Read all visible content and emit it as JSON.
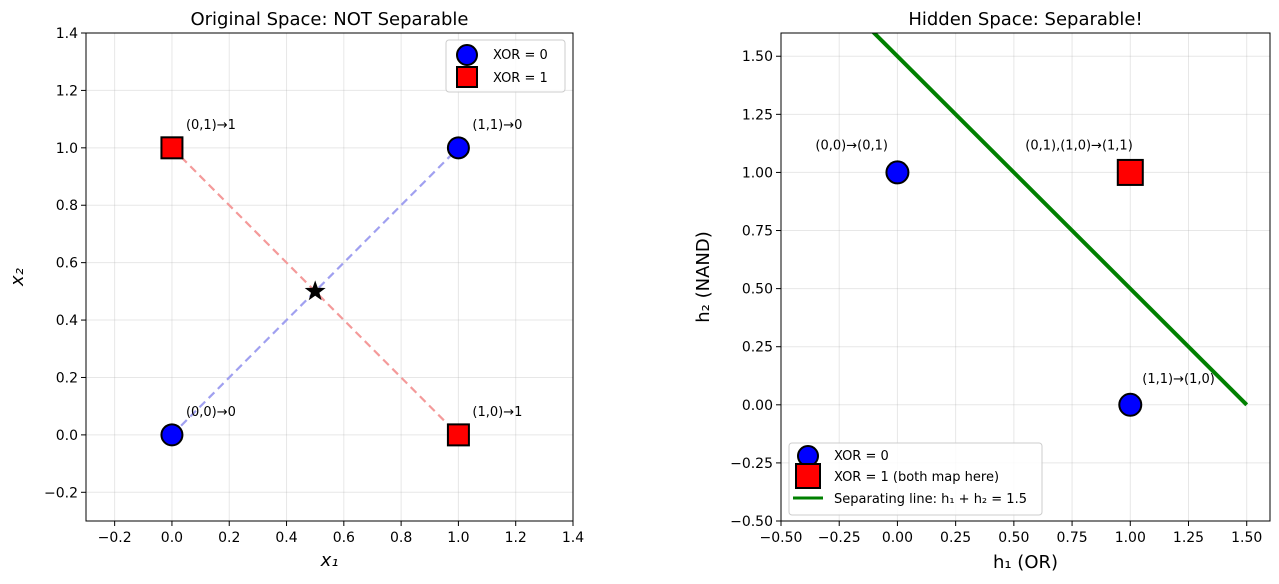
{
  "chart_data": [
    {
      "type": "scatter",
      "title": "Original Space: NOT Separable",
      "xlabel": "x₁",
      "ylabel": "x₂",
      "xlim": [
        -0.3,
        1.4
      ],
      "ylim": [
        -0.3,
        1.4
      ],
      "xticks": [
        -0.2,
        0.0,
        0.2,
        0.4,
        0.6,
        0.8,
        1.0,
        1.2,
        1.4
      ],
      "xtick_labels": [
        "−0.2",
        "0.0",
        "0.2",
        "0.4",
        "0.6",
        "0.8",
        "1.0",
        "1.2",
        "1.4"
      ],
      "yticks": [
        -0.2,
        0.0,
        0.2,
        0.4,
        0.6,
        0.8,
        1.0,
        1.2,
        1.4
      ],
      "ytick_labels": [
        "−0.2",
        "0.0",
        "0.2",
        "0.4",
        "0.6",
        "0.8",
        "1.0",
        "1.2",
        "1.4"
      ],
      "grid": true,
      "legend_position": "top-right",
      "series": [
        {
          "name": "XOR = 0",
          "marker": "circle",
          "color": "#0000ff",
          "points": [
            [
              0,
              0
            ],
            [
              1,
              1
            ]
          ]
        },
        {
          "name": "XOR = 1",
          "marker": "square",
          "color": "#ff0000",
          "points": [
            [
              0,
              1
            ],
            [
              1,
              0
            ]
          ]
        }
      ],
      "lines": [
        {
          "from": [
            0,
            0
          ],
          "to": [
            1,
            1
          ],
          "color": "#a0a0f0",
          "style": "dashed"
        },
        {
          "from": [
            0,
            1
          ],
          "to": [
            1,
            0
          ],
          "color": "#f49a9a",
          "style": "dashed"
        }
      ],
      "star": [
        0.5,
        0.5
      ],
      "annotations": [
        {
          "text": "(0,0)→0",
          "x": 0,
          "y": 0
        },
        {
          "text": "(0,1)→1",
          "x": 0,
          "y": 1
        },
        {
          "text": "(1,0)→1",
          "x": 1,
          "y": 0
        },
        {
          "text": "(1,1)→0",
          "x": 1,
          "y": 1
        }
      ]
    },
    {
      "type": "scatter",
      "title": "Hidden Space: Separable!",
      "xlabel": "h₁ (OR)",
      "ylabel": "h₂ (NAND)",
      "xlim": [
        -0.5,
        1.6
      ],
      "ylim": [
        -0.5,
        1.6
      ],
      "xticks": [
        -0.5,
        -0.25,
        0.0,
        0.25,
        0.5,
        0.75,
        1.0,
        1.25,
        1.5
      ],
      "xtick_labels": [
        "−0.50",
        "−0.25",
        "0.00",
        "0.25",
        "0.50",
        "0.75",
        "1.00",
        "1.25",
        "1.50"
      ],
      "yticks": [
        -0.5,
        -0.25,
        0.0,
        0.25,
        0.5,
        0.75,
        1.0,
        1.25,
        1.5
      ],
      "ytick_labels": [
        "−0.50",
        "−0.25",
        "0.00",
        "0.25",
        "0.50",
        "0.75",
        "1.00",
        "1.25",
        "1.50"
      ],
      "grid": true,
      "legend_position": "bottom-left",
      "series": [
        {
          "name": "XOR = 0",
          "marker": "circle",
          "color": "#0000ff",
          "points": [
            [
              0,
              1
            ],
            [
              1,
              0
            ]
          ]
        },
        {
          "name": "XOR = 1 (both map here)",
          "marker": "square",
          "color": "#ff0000",
          "points": [
            [
              1,
              1
            ]
          ]
        },
        {
          "name": "Separating line: h₁ + h₂ = 1.5",
          "marker": "line",
          "color": "#008000",
          "line": {
            "from": [
              -0.5,
              2.0
            ],
            "to": [
              1.5,
              0.0
            ]
          }
        }
      ],
      "annotations": [
        {
          "text": "(0,0)→(0,1)",
          "x": 0,
          "y": 1
        },
        {
          "text": "(0,1),(1,0)→(1,1)",
          "x": 1,
          "y": 1
        },
        {
          "text": "(1,1)→(1,0)",
          "x": 1,
          "y": 0
        }
      ]
    }
  ]
}
